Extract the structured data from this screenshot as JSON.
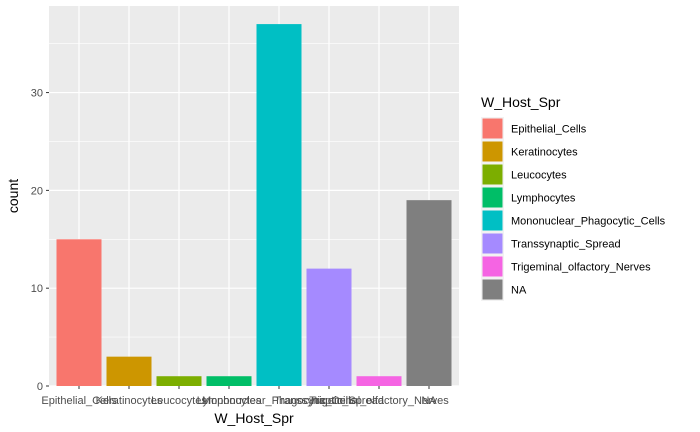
{
  "chart_data": {
    "type": "bar",
    "xlabel": "W_Host_Spr",
    "ylabel": "count",
    "ylim": [
      0,
      38.85
    ],
    "yticks": [
      0,
      10,
      20,
      30
    ],
    "categories": [
      "Epithelial_Cells",
      "Keratinocytes",
      "Leucocytes",
      "Lymphocytes",
      "Mononuclear_Phagocytic_Cells",
      "Transsynaptic_Spread",
      "Trigeminal_olfactory_Nerves",
      "NA"
    ],
    "values": [
      15,
      3,
      1,
      1,
      37,
      12,
      1,
      19
    ],
    "colors": [
      "#F8766D",
      "#CD9600",
      "#7CAE00",
      "#00BE67",
      "#00BFC4",
      "#A58AFF",
      "#F564E3",
      "#7F7F7F"
    ],
    "legend": {
      "title": "W_Host_Spr",
      "placement": "right",
      "entries": [
        "Epithelial_Cells",
        "Keratinocytes",
        "Leucocytes",
        "Lymphocytes",
        "Mononuclear_Phagocytic_Cells",
        "Transsynaptic_Spread",
        "Trigeminal_olfactory_Nerves",
        "NA"
      ]
    },
    "grid": true,
    "panel_background": "#EBEBEB",
    "gridline_color": "#FFFFFF"
  }
}
